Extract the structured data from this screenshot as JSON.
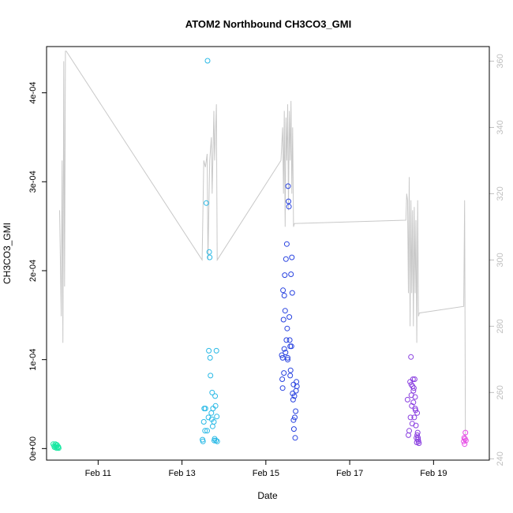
{
  "chart_data": {
    "type": "scatter",
    "title": "ATOM2 Northbound CH3CO3_GMI",
    "xlabel": "Date",
    "ylabel": "CH3CO3_GMI",
    "x_unit": "day of February",
    "xlim": [
      9.77,
      20.33
    ],
    "ylim": [
      -1.3e-05,
      0.000452
    ],
    "y2lim": [
      239.6,
      364.4
    ],
    "x_ticks": [
      {
        "value": 11,
        "label": "Feb 11"
      },
      {
        "value": 13,
        "label": "Feb 13"
      },
      {
        "value": 15,
        "label": "Feb 15"
      },
      {
        "value": 17,
        "label": "Feb 17"
      },
      {
        "value": 19,
        "label": "Feb 19"
      }
    ],
    "y_ticks": [
      {
        "value": 0,
        "label": "0e+00"
      },
      {
        "value": 0.0001,
        "label": "1e-04"
      },
      {
        "value": 0.0002,
        "label": "2e-04"
      },
      {
        "value": 0.0003,
        "label": "3e-04"
      },
      {
        "value": 0.0004,
        "label": "4e-04"
      }
    ],
    "y2_ticks": [
      {
        "value": 240,
        "label": "240"
      },
      {
        "value": 260,
        "label": "260"
      },
      {
        "value": 280,
        "label": "280"
      },
      {
        "value": 300,
        "label": "300"
      },
      {
        "value": 320,
        "label": "320"
      },
      {
        "value": 340,
        "label": "340"
      },
      {
        "value": 360,
        "label": "360"
      }
    ],
    "grid": false,
    "legend": "none",
    "secondary_series": {
      "type": "line",
      "axis": "right",
      "color": "#c8c8c8",
      "points": [
        [
          10.08,
          315
        ],
        [
          10.1,
          300
        ],
        [
          10.12,
          283
        ],
        [
          10.14,
          330
        ],
        [
          10.16,
          275
        ],
        [
          10.18,
          360
        ],
        [
          10.2,
          292
        ],
        [
          10.22,
          363
        ],
        [
          10.24,
          363
        ],
        [
          13.48,
          300
        ],
        [
          13.52,
          330
        ],
        [
          13.56,
          328
        ],
        [
          13.6,
          332
        ],
        [
          13.62,
          300
        ],
        [
          13.66,
          330
        ],
        [
          13.7,
          337
        ],
        [
          13.72,
          320
        ],
        [
          13.76,
          345
        ],
        [
          13.78,
          330
        ],
        [
          13.82,
          347
        ],
        [
          13.84,
          300
        ],
        [
          15.36,
          330
        ],
        [
          15.4,
          340
        ],
        [
          15.42,
          320
        ],
        [
          15.44,
          345
        ],
        [
          15.46,
          310
        ],
        [
          15.48,
          343
        ],
        [
          15.5,
          330
        ],
        [
          15.52,
          347
        ],
        [
          15.54,
          315
        ],
        [
          15.56,
          345
        ],
        [
          15.58,
          330
        ],
        [
          15.6,
          348
        ],
        [
          15.62,
          320
        ],
        [
          15.64,
          340
        ],
        [
          15.66,
          310
        ],
        [
          15.68,
          311
        ],
        [
          18.34,
          312
        ],
        [
          18.36,
          320
        ],
        [
          18.38,
          318
        ],
        [
          18.4,
          290
        ],
        [
          18.42,
          325
        ],
        [
          18.44,
          280
        ],
        [
          18.46,
          318
        ],
        [
          18.48,
          290
        ],
        [
          18.5,
          315
        ],
        [
          18.52,
          280
        ],
        [
          18.54,
          316
        ],
        [
          18.56,
          290
        ],
        [
          18.58,
          312
        ],
        [
          18.6,
          275
        ],
        [
          18.62,
          318
        ],
        [
          18.64,
          283
        ],
        [
          18.66,
          284
        ],
        [
          19.72,
          286
        ],
        [
          19.74,
          318
        ],
        [
          19.76,
          246
        ]
      ]
    },
    "series": [
      {
        "color": "#19e8a2",
        "points": [
          [
            9.93,
            5e-06
          ],
          [
            9.95,
            3e-06
          ],
          [
            9.96,
            1.5e-06
          ],
          [
            9.98,
            5e-06
          ],
          [
            9.99,
            2e-06
          ],
          [
            10.0,
            3.5e-06
          ],
          [
            10.01,
            5e-07
          ],
          [
            10.02,
            4e-06
          ],
          [
            10.04,
            1e-06
          ],
          [
            10.05,
            2e-06
          ],
          [
            10.06,
            5e-07
          ]
        ]
      },
      {
        "color": "#29b9e6",
        "points": [
          [
            13.49,
            1e-05
          ],
          [
            13.5,
            8e-06
          ],
          [
            13.52,
            3e-05
          ],
          [
            13.53,
            4.5e-05
          ],
          [
            13.55,
            2e-05
          ],
          [
            13.56,
            4.5e-05
          ],
          [
            13.58,
            0.000276
          ],
          [
            13.6,
            2e-05
          ],
          [
            13.61,
            0.000436
          ],
          [
            13.63,
            3.5e-05
          ],
          [
            13.64,
            0.00011
          ],
          [
            13.65,
            0.000221
          ],
          [
            13.66,
            0.000215
          ],
          [
            13.67,
            0.000102
          ],
          [
            13.68,
            8.2e-05
          ],
          [
            13.7,
            4e-05
          ],
          [
            13.71,
            3.3e-05
          ],
          [
            13.72,
            6.3e-05
          ],
          [
            13.73,
            2.5e-05
          ],
          [
            13.74,
            4.5e-05
          ],
          [
            13.76,
            3e-05
          ],
          [
            13.77,
            9e-06
          ],
          [
            13.78,
            1.1e-05
          ],
          [
            13.79,
            5.9e-05
          ],
          [
            13.8,
            4.8e-05
          ],
          [
            13.81,
            9e-06
          ],
          [
            13.82,
            0.00011
          ],
          [
            13.83,
            3.6e-05
          ],
          [
            13.84,
            8e-06
          ]
        ]
      },
      {
        "color": "#2943e0",
        "points": [
          [
            15.38,
            0.000105
          ],
          [
            15.39,
            7.8e-05
          ],
          [
            15.4,
            6.8e-05
          ],
          [
            15.41,
            0.000178
          ],
          [
            15.42,
            0.000145
          ],
          [
            15.43,
            8.5e-05
          ],
          [
            15.44,
            0.000112
          ],
          [
            15.45,
            0.000195
          ],
          [
            15.46,
            0.000155
          ],
          [
            15.47,
            0.000108
          ],
          [
            15.48,
            0.000213
          ],
          [
            15.49,
            0.000122
          ],
          [
            15.5,
            0.00023
          ],
          [
            15.51,
            0.000135
          ],
          [
            15.52,
            0.000102
          ],
          [
            15.53,
            0.000295
          ],
          [
            15.54,
            0.000278
          ],
          [
            15.55,
            0.000272
          ],
          [
            15.56,
            0.000148
          ],
          [
            15.57,
            0.000122
          ],
          [
            15.58,
            0.000115
          ],
          [
            15.59,
            8.8e-05
          ],
          [
            15.6,
            0.000196
          ],
          [
            15.61,
            0.000115
          ],
          [
            15.62,
            0.000215
          ],
          [
            15.63,
            0.000175
          ],
          [
            15.64,
            6.2e-05
          ],
          [
            15.65,
            5.5e-05
          ],
          [
            15.66,
            3.2e-05
          ],
          [
            15.67,
            2.2e-05
          ],
          [
            15.68,
            5.9e-05
          ],
          [
            15.69,
            3.5e-05
          ],
          [
            15.7,
            1.2e-05
          ],
          [
            15.71,
            4.2e-05
          ],
          [
            15.72,
            6.5e-05
          ],
          [
            15.73,
            7.5e-05
          ],
          [
            15.74,
            7e-05
          ],
          [
            15.4,
            0.000102
          ],
          [
            15.44,
            0.000172
          ],
          [
            15.52,
            0.0001
          ],
          [
            15.58,
            8.2e-05
          ],
          [
            15.66,
            7.2e-05
          ]
        ]
      },
      {
        "color": "#8a3fe0",
        "points": [
          [
            18.38,
            5.5e-05
          ],
          [
            18.4,
            1.5e-05
          ],
          [
            18.42,
            2e-05
          ],
          [
            18.44,
            7.5e-05
          ],
          [
            18.45,
            3.5e-05
          ],
          [
            18.46,
            0.000103
          ],
          [
            18.47,
            6e-05
          ],
          [
            18.48,
            4.8e-05
          ],
          [
            18.49,
            2.8e-05
          ],
          [
            18.5,
            7e-05
          ],
          [
            18.51,
            7.8e-05
          ],
          [
            18.52,
            5.2e-05
          ],
          [
            18.53,
            6.8e-05
          ],
          [
            18.54,
            3.5e-05
          ],
          [
            18.55,
            7.8e-05
          ],
          [
            18.56,
            5.8e-05
          ],
          [
            18.57,
            4.3e-05
          ],
          [
            18.58,
            2.6e-05
          ],
          [
            18.59,
            1.2e-05
          ],
          [
            18.6,
            7e-06
          ],
          [
            18.61,
            4e-05
          ],
          [
            18.62,
            1.8e-05
          ],
          [
            18.63,
            1.2e-05
          ],
          [
            18.64,
            8e-06
          ],
          [
            18.65,
            6e-06
          ],
          [
            18.47,
            7.2e-05
          ],
          [
            18.52,
            6.5e-05
          ],
          [
            18.56,
            4.5e-05
          ],
          [
            18.61,
            1.5e-05
          ],
          [
            18.63,
            1e-05
          ]
        ]
      },
      {
        "color": "#e64ce6",
        "points": [
          [
            19.72,
            8e-06
          ],
          [
            19.73,
            1.2e-05
          ],
          [
            19.74,
            5e-06
          ],
          [
            19.75,
            1.1e-05
          ],
          [
            19.76,
            1.8e-05
          ],
          [
            19.77,
            9e-06
          ]
        ]
      }
    ]
  }
}
